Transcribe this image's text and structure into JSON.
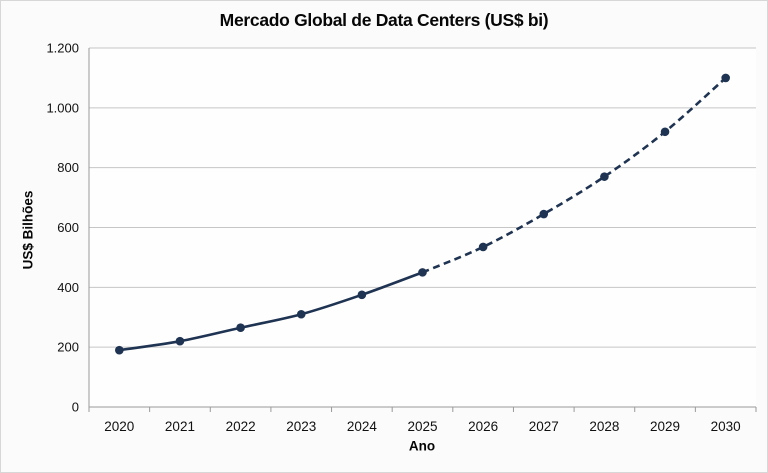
{
  "chart_data": {
    "type": "line",
    "title": "Mercado Global de Data Centers (US$ bi)",
    "xlabel": "Ano",
    "ylabel": "US$ Bilhões",
    "categories": [
      "2020",
      "2021",
      "2022",
      "2023",
      "2024",
      "2025",
      "2026",
      "2027",
      "2028",
      "2029",
      "2030"
    ],
    "values": [
      190,
      220,
      265,
      310,
      375,
      450,
      535,
      645,
      770,
      920,
      1100
    ],
    "solid_until_index": 5,
    "ylim": [
      0,
      1200
    ],
    "yticks": [
      {
        "value": 0,
        "label": "0"
      },
      {
        "value": 200,
        "label": "200"
      },
      {
        "value": 400,
        "label": "400"
      },
      {
        "value": 600,
        "label": "600"
      },
      {
        "value": 800,
        "label": "800"
      },
      {
        "value": 1000,
        "label": "1.000"
      },
      {
        "value": 1200,
        "label": "1.200"
      }
    ],
    "grid": "horizontal",
    "legend": "none",
    "marker": "circle",
    "line_style": "solid for 2020-2025, dashed for 2025-2030",
    "colors": {
      "line": "#1f3352",
      "grid": "#c6c6c6",
      "axis": "#9a9a9a",
      "text": "#111111",
      "plot_bg": "#fefefe",
      "page_bg": "#fbfbfb",
      "page_border": "#d7d7d7"
    }
  }
}
